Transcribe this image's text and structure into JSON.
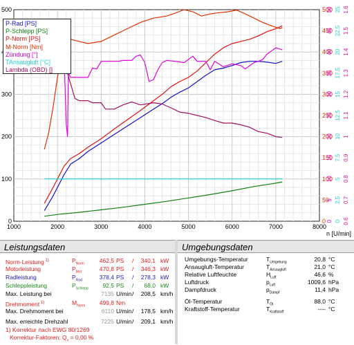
{
  "chart_data": {
    "type": "line",
    "xlabel": "n [U/min]",
    "x_ticks": [
      1000,
      2000,
      3000,
      4000,
      5000,
      6000,
      7000,
      8000
    ],
    "left_ticks": [
      0,
      100,
      200,
      300,
      400,
      500
    ],
    "xlim": [
      1000,
      8000
    ],
    "ylim": [
      0,
      500
    ],
    "right_axes": [
      {
        "color": "#e03000",
        "ticks": [
          "0",
          "50",
          "100",
          "150",
          "200",
          "250",
          "300",
          "350",
          "400",
          "450",
          "500"
        ]
      },
      {
        "color": "#e000e0",
        "ticks": [
          "0",
          "5",
          "10",
          "15",
          "20",
          "25",
          "30",
          "35",
          "40",
          "45",
          "50"
        ]
      },
      {
        "color": "#20d0d0",
        "ticks": [
          "0",
          "2.5",
          "5",
          "7.5",
          "10",
          "12.5",
          "15",
          "17.5",
          "20",
          "22.5",
          "25"
        ]
      },
      {
        "color": "#e01090",
        "ticks": [
          "0.6",
          "0.7",
          "0.8",
          "0.9",
          "1",
          "1.1",
          "1.2",
          "1.3",
          "1.4",
          "1.5",
          "1.6"
        ]
      }
    ],
    "series": [
      {
        "name": "P-Rad [PS]",
        "color": "#1010d0",
        "points": [
          [
            1700,
            25
          ],
          [
            1900,
            60
          ],
          [
            2150,
            110
          ],
          [
            2300,
            135
          ],
          [
            2500,
            148
          ],
          [
            2700,
            165
          ],
          [
            3000,
            185
          ],
          [
            3300,
            205
          ],
          [
            3600,
            225
          ],
          [
            3900,
            245
          ],
          [
            4200,
            265
          ],
          [
            4400,
            278
          ],
          [
            4600,
            293
          ],
          [
            4800,
            305
          ],
          [
            5000,
            315
          ],
          [
            5200,
            330
          ],
          [
            5400,
            345
          ],
          [
            5600,
            358
          ],
          [
            5800,
            362
          ],
          [
            6000,
            368
          ],
          [
            6200,
            375
          ],
          [
            6400,
            378
          ],
          [
            6600,
            378
          ],
          [
            6800,
            376
          ],
          [
            7000,
            373
          ],
          [
            7150,
            378
          ]
        ]
      },
      {
        "name": "P-Schlepp [PS]",
        "color": "#108010",
        "points": [
          [
            1700,
            12
          ],
          [
            2000,
            16
          ],
          [
            2500,
            21
          ],
          [
            3000,
            27
          ],
          [
            3500,
            33
          ],
          [
            4000,
            40
          ],
          [
            4500,
            47
          ],
          [
            5000,
            55
          ],
          [
            5500,
            63
          ],
          [
            6000,
            72
          ],
          [
            6500,
            82
          ],
          [
            7000,
            90
          ],
          [
            7150,
            93
          ]
        ]
      },
      {
        "name": "P-Norm [PS]",
        "color": "#e01010",
        "points": [
          [
            1700,
            42
          ],
          [
            1900,
            80
          ],
          [
            2150,
            130
          ],
          [
            2300,
            148
          ],
          [
            2500,
            160
          ],
          [
            2700,
            175
          ],
          [
            3000,
            195
          ],
          [
            3300,
            218
          ],
          [
            3600,
            240
          ],
          [
            3900,
            262
          ],
          [
            4200,
            285
          ],
          [
            4400,
            300
          ],
          [
            4600,
            318
          ],
          [
            4800,
            330
          ],
          [
            5000,
            340
          ],
          [
            5200,
            355
          ],
          [
            5400,
            375
          ],
          [
            5600,
            395
          ],
          [
            5800,
            410
          ],
          [
            6000,
            420
          ],
          [
            6200,
            425
          ],
          [
            6400,
            430
          ],
          [
            6600,
            438
          ],
          [
            6800,
            448
          ],
          [
            7000,
            455
          ],
          [
            7150,
            462
          ]
        ]
      },
      {
        "name": "M-Norm [Nm]",
        "color": "#e03000",
        "points": [
          [
            1700,
            170
          ],
          [
            1800,
            210
          ],
          [
            1900,
            270
          ],
          [
            2000,
            340
          ],
          [
            2100,
            390
          ],
          [
            2200,
            420
          ],
          [
            2300,
            430
          ],
          [
            2500,
            425
          ],
          [
            2700,
            420
          ],
          [
            3000,
            425
          ],
          [
            3300,
            440
          ],
          [
            3600,
            455
          ],
          [
            3900,
            470
          ],
          [
            4200,
            480
          ],
          [
            4500,
            485
          ],
          [
            4700,
            492
          ],
          [
            4900,
            500
          ],
          [
            5100,
            495
          ],
          [
            5300,
            485
          ],
          [
            5500,
            490
          ],
          [
            5700,
            493
          ],
          [
            5900,
            495
          ],
          [
            6100,
            499
          ],
          [
            6300,
            490
          ],
          [
            6500,
            480
          ],
          [
            6700,
            470
          ],
          [
            6900,
            462
          ],
          [
            7100,
            455
          ],
          [
            7150,
            458
          ]
        ]
      },
      {
        "name": "Zündung [°]",
        "color": "#e000e0",
        "points": [
          [
            1700,
            395
          ],
          [
            2000,
            395
          ],
          [
            2150,
            395
          ],
          [
            2200,
            230
          ],
          [
            2230,
            200
          ],
          [
            2250,
            350
          ],
          [
            2300,
            340
          ],
          [
            2700,
            340
          ],
          [
            2800,
            362
          ],
          [
            2900,
            360
          ],
          [
            3000,
            378
          ],
          [
            3400,
            378
          ],
          [
            3500,
            380
          ],
          [
            3700,
            380
          ],
          [
            3800,
            390
          ],
          [
            3900,
            393
          ],
          [
            4000,
            375
          ],
          [
            4100,
            330
          ],
          [
            4200,
            335
          ],
          [
            4300,
            358
          ],
          [
            4400,
            375
          ],
          [
            4500,
            380
          ],
          [
            4700,
            378
          ],
          [
            4900,
            375
          ],
          [
            5100,
            390
          ],
          [
            5200,
            378
          ],
          [
            5400,
            378
          ],
          [
            5500,
            358
          ],
          [
            5600,
            378
          ],
          [
            5800,
            365
          ],
          [
            6000,
            372
          ],
          [
            6200,
            368
          ],
          [
            6300,
            360
          ],
          [
            6500,
            375
          ],
          [
            6600,
            378
          ],
          [
            6700,
            382
          ],
          [
            6800,
            395
          ],
          [
            7000,
            410
          ],
          [
            7150,
            405
          ]
        ]
      },
      {
        "name": "TAnsaugluft [°C]",
        "color": "#20d0d0",
        "points": [
          [
            1700,
            100
          ],
          [
            2400,
            100
          ],
          [
            3000,
            100
          ],
          [
            4000,
            100
          ],
          [
            5000,
            100
          ],
          [
            6000,
            100
          ],
          [
            7000,
            100
          ],
          [
            7150,
            100
          ]
        ]
      },
      {
        "name": "Lambda (OBD) []",
        "color": "#a01060",
        "points": [
          [
            1700,
            405
          ],
          [
            2000,
            405
          ],
          [
            2200,
            360
          ],
          [
            2400,
            290
          ],
          [
            2500,
            285
          ],
          [
            2700,
            285
          ],
          [
            2800,
            280
          ],
          [
            3000,
            280
          ],
          [
            3100,
            265
          ],
          [
            3300,
            265
          ],
          [
            3500,
            275
          ],
          [
            3700,
            282
          ],
          [
            3900,
            275
          ],
          [
            4200,
            280
          ],
          [
            4400,
            277
          ],
          [
            4600,
            268
          ],
          [
            4800,
            258
          ],
          [
            5000,
            255
          ],
          [
            5200,
            250
          ],
          [
            5400,
            245
          ],
          [
            5600,
            238
          ],
          [
            5800,
            232
          ],
          [
            6000,
            232
          ],
          [
            6200,
            228
          ],
          [
            6400,
            222
          ],
          [
            6600,
            212
          ],
          [
            6800,
            208
          ],
          [
            7000,
            200
          ],
          [
            7150,
            198
          ]
        ]
      }
    ]
  },
  "legend": {
    "items": [
      {
        "label": "P-Rad [PS]",
        "color": "#1010d0"
      },
      {
        "label": "P-Schlepp [PS]",
        "color": "#108010"
      },
      {
        "label": "P-Norm [PS]",
        "color": "#e01010"
      },
      {
        "label": "M-Norm [Nm]",
        "color": "#e03000"
      },
      {
        "label": "Zündung [°]",
        "color": "#e000e0"
      },
      {
        "label": "TAnsaugluft [°C]",
        "color": "#20d0d0"
      },
      {
        "label": "Lambda (OBD) []",
        "color": "#a01060"
      }
    ]
  },
  "leistung": {
    "title": "Leistungsdaten",
    "rows": [
      {
        "label": "Norm-Leistung",
        "sup": "1)",
        "sym": "P",
        "sub": "Norm",
        "v1": "462,5",
        "u1": "PS",
        "v2": "340,1",
        "u2": "kW",
        "color": "#e02020"
      },
      {
        "label": "Motorleistung",
        "sup": "",
        "sym": "P",
        "sub": "Mot",
        "v1": "470,8",
        "u1": "PS",
        "v2": "346,3",
        "u2": "kW",
        "color": "#e02020"
      },
      {
        "label": "Radleistung",
        "sup": "",
        "sym": "P",
        "sub": "Rad",
        "v1": "378,4",
        "u1": "PS",
        "v2": "278,3",
        "u2": "kW",
        "color": "#1a1ad0"
      },
      {
        "label": "Schleppleistung",
        "sup": "",
        "sym": "P",
        "sub": "Schlepp",
        "v1": "92,5",
        "u1": "PS",
        "v2": "68,0",
        "u2": "kW",
        "color": "#1b8a1b"
      }
    ],
    "max_power_at": {
      "label": "Max. Leistung bei",
      "rpm": "7135",
      "unit": "U/min",
      "speed": "208,5",
      "speed_unit": "km/h"
    },
    "torque": {
      "label": "Drehmoment",
      "sup": "1)",
      "sym": "M",
      "sub": "Norm",
      "value": "499,8",
      "unit": "Nm"
    },
    "max_torque_at": {
      "label": "Max. Drehmoment bei",
      "rpm": "6110",
      "unit": "U/min",
      "speed": "178,5",
      "speed_unit": "km/h"
    },
    "max_rpm": {
      "label": "Max. erreichte Drehzahl",
      "rpm": "7225",
      "unit": "U/min",
      "speed": "209,1",
      "speed_unit": "km/h"
    },
    "footnote1": "1) Korrektur nach EWG 80/1269",
    "footnote2": "Korrektur-Faktoren: Q",
    "footnote2_sub": "v",
    "footnote2_val": " =   0,00 %"
  },
  "umgebung": {
    "title": "Umgebungsdaten",
    "rows": [
      {
        "label": "Umgebungs-Temperatur",
        "sym": "T",
        "sub": "Umgebung",
        "value": "20,8",
        "unit": "°C"
      },
      {
        "label": "Ansaugluft-Temperatur",
        "sym": "T",
        "sub": "Ansaugluft",
        "value": "21,0",
        "unit": "°C"
      },
      {
        "label": "Relative Luftfeuchte",
        "sym": "H",
        "sub": "Luft",
        "value": "46,6",
        "unit": "%"
      },
      {
        "label": "Luftdruck",
        "sym": "p",
        "sub": "Luft",
        "value": "1009,6",
        "unit": "hPa"
      },
      {
        "label": "Dampfdruck",
        "sym": "p",
        "sub": "Dampf",
        "value": "11,4",
        "unit": "hPa"
      },
      {
        "label": "Öl-Temperatur",
        "sym": "T",
        "sub": "Öl",
        "value": "88,0",
        "unit": "°C"
      },
      {
        "label": "Kraftstoff-Temperatur",
        "sym": "T",
        "sub": "Kraftstoff",
        "value": "----",
        "unit": "°C"
      }
    ]
  }
}
